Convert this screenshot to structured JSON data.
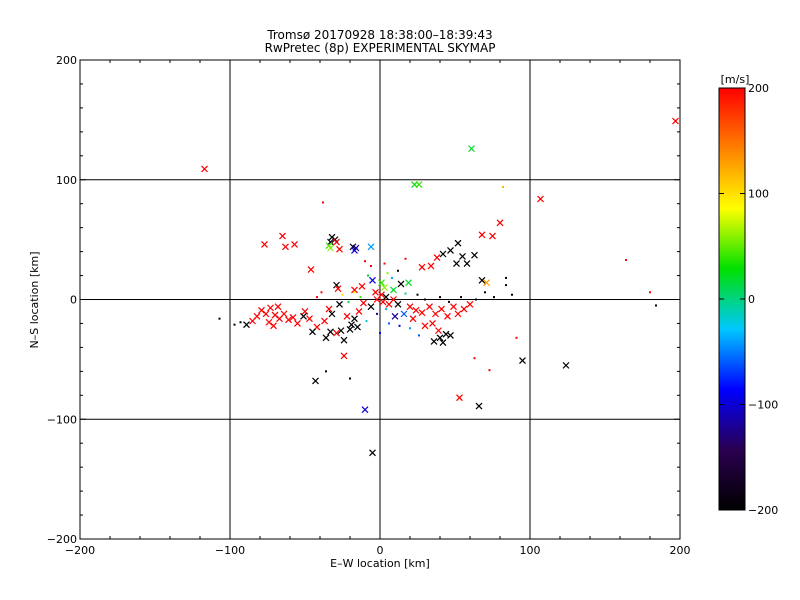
{
  "chart_data": {
    "type": "scatter",
    "title": "Tromsø 20170928 18:38:00–18:39:43",
    "subtitle": "RwPretec (8p) EXPERIMENTAL SKYMAP",
    "xlabel": "E–W location [km]",
    "ylabel": "N–S location [km]",
    "xlim": [
      -200,
      200
    ],
    "ylim": [
      -200,
      200
    ],
    "xticks": [
      -200,
      -100,
      0,
      100,
      200
    ],
    "yticks": [
      -200,
      -100,
      0,
      100,
      200
    ],
    "xtick_labels": [
      "−200",
      "−100",
      "0",
      "100",
      "200"
    ],
    "ytick_labels": [
      "−200",
      "−100",
      "0",
      "100",
      "200"
    ],
    "grid": true,
    "grid_lines": [
      -100,
      0,
      100
    ],
    "colorbar": {
      "label": "[m/s]",
      "range": [
        -200,
        200
      ],
      "ticks": [
        -200,
        -100,
        0,
        100,
        200
      ],
      "tick_labels": [
        "−200",
        "−100",
        "0",
        "100",
        "200"
      ],
      "stops": [
        "#000000",
        "#2a0050",
        "#0000ff",
        "#00c8ff",
        "#00e000",
        "#ffff00",
        "#ff8000",
        "#ff0000"
      ]
    },
    "markers": {
      "cross": "large velocity markers",
      "dot": "small velocity markers"
    },
    "points": [
      {
        "x": -117,
        "y": 109,
        "v": 200,
        "m": "x"
      },
      {
        "x": 197,
        "y": 149,
        "v": 200,
        "m": "x"
      },
      {
        "x": 61,
        "y": 126,
        "v": 20,
        "m": "x"
      },
      {
        "x": 23,
        "y": 96,
        "v": 30,
        "m": "x"
      },
      {
        "x": 26,
        "y": 96,
        "v": 40,
        "m": "x"
      },
      {
        "x": 107,
        "y": 84,
        "v": 200,
        "m": "x"
      },
      {
        "x": 82,
        "y": 94,
        "v": 120,
        "m": "d"
      },
      {
        "x": -38,
        "y": 81,
        "v": 200,
        "m": "d"
      },
      {
        "x": 80,
        "y": 64,
        "v": 200,
        "m": "x"
      },
      {
        "x": 68,
        "y": 54,
        "v": 200,
        "m": "x"
      },
      {
        "x": 75,
        "y": 53,
        "v": 200,
        "m": "x"
      },
      {
        "x": -65,
        "y": 53,
        "v": 200,
        "m": "x"
      },
      {
        "x": -32,
        "y": 52,
        "v": -200,
        "m": "x"
      },
      {
        "x": -30,
        "y": 50,
        "v": -200,
        "m": "x"
      },
      {
        "x": -33,
        "y": 48,
        "v": -180,
        "m": "x"
      },
      {
        "x": -29,
        "y": 48,
        "v": 200,
        "m": "x"
      },
      {
        "x": -77,
        "y": 46,
        "v": 200,
        "m": "x"
      },
      {
        "x": -57,
        "y": 46,
        "v": 200,
        "m": "x"
      },
      {
        "x": -63,
        "y": 44,
        "v": 200,
        "m": "x"
      },
      {
        "x": -34,
        "y": 45,
        "v": 40,
        "m": "x"
      },
      {
        "x": -33,
        "y": 43,
        "v": 60,
        "m": "x"
      },
      {
        "x": -27,
        "y": 42,
        "v": 200,
        "m": "x"
      },
      {
        "x": -18,
        "y": 44,
        "v": -180,
        "m": "x"
      },
      {
        "x": -16,
        "y": 43,
        "v": -120,
        "m": "x"
      },
      {
        "x": -17,
        "y": 41,
        "v": -100,
        "m": "x"
      },
      {
        "x": -6,
        "y": 44,
        "v": -40,
        "m": "x"
      },
      {
        "x": 52,
        "y": 47,
        "v": -200,
        "m": "x"
      },
      {
        "x": 47,
        "y": 41,
        "v": -200,
        "m": "x"
      },
      {
        "x": 42,
        "y": 38,
        "v": -200,
        "m": "x"
      },
      {
        "x": 38,
        "y": 35,
        "v": 200,
        "m": "x"
      },
      {
        "x": 55,
        "y": 36,
        "v": -200,
        "m": "x"
      },
      {
        "x": 63,
        "y": 37,
        "v": -200,
        "m": "x"
      },
      {
        "x": 51,
        "y": 30,
        "v": -200,
        "m": "x"
      },
      {
        "x": 58,
        "y": 30,
        "v": -200,
        "m": "x"
      },
      {
        "x": 34,
        "y": 28,
        "v": 200,
        "m": "x"
      },
      {
        "x": 28,
        "y": 27,
        "v": 200,
        "m": "x"
      },
      {
        "x": -46,
        "y": 25,
        "v": 200,
        "m": "x"
      },
      {
        "x": 68,
        "y": 16,
        "v": -200,
        "m": "x"
      },
      {
        "x": 71,
        "y": 14,
        "v": 130,
        "m": "x"
      },
      {
        "x": 84,
        "y": 18,
        "v": -200,
        "m": "d"
      },
      {
        "x": 84,
        "y": 12,
        "v": -200,
        "m": "d"
      },
      {
        "x": 88,
        "y": 4,
        "v": -200,
        "m": "d"
      },
      {
        "x": 164,
        "y": 33,
        "v": 200,
        "m": "d"
      },
      {
        "x": 180,
        "y": 6,
        "v": 200,
        "m": "d"
      },
      {
        "x": 184,
        "y": -5,
        "v": -200,
        "m": "d"
      },
      {
        "x": -29,
        "y": 12,
        "v": -200,
        "m": "x"
      },
      {
        "x": -28,
        "y": 9,
        "v": 200,
        "m": "x"
      },
      {
        "x": -17,
        "y": 8,
        "v": 200,
        "m": "x"
      },
      {
        "x": -12,
        "y": 11,
        "v": 200,
        "m": "x"
      },
      {
        "x": -5,
        "y": 16,
        "v": -100,
        "m": "x"
      },
      {
        "x": 1,
        "y": 14,
        "v": 40,
        "m": "x"
      },
      {
        "x": 3,
        "y": 10,
        "v": 60,
        "m": "x"
      },
      {
        "x": 9,
        "y": 8,
        "v": 20,
        "m": "x"
      },
      {
        "x": 14,
        "y": 13,
        "v": -200,
        "m": "x"
      },
      {
        "x": 19,
        "y": 14,
        "v": 20,
        "m": "x"
      },
      {
        "x": -3,
        "y": 6,
        "v": 200,
        "m": "x"
      },
      {
        "x": 1,
        "y": 4,
        "v": 200,
        "m": "x"
      },
      {
        "x": 4,
        "y": 2,
        "v": -200,
        "m": "x"
      },
      {
        "x": -2,
        "y": 0,
        "v": 200,
        "m": "x"
      },
      {
        "x": 2,
        "y": -2,
        "v": 200,
        "m": "x"
      },
      {
        "x": 6,
        "y": -4,
        "v": 200,
        "m": "x"
      },
      {
        "x": 9,
        "y": 0,
        "v": 200,
        "m": "x"
      },
      {
        "x": 12,
        "y": -4,
        "v": -200,
        "m": "x"
      },
      {
        "x": -6,
        "y": -6,
        "v": -200,
        "m": "x"
      },
      {
        "x": -11,
        "y": -3,
        "v": 200,
        "m": "x"
      },
      {
        "x": -14,
        "y": -10,
        "v": 200,
        "m": "x"
      },
      {
        "x": -17,
        "y": -16,
        "v": -200,
        "m": "x"
      },
      {
        "x": -19,
        "y": -21,
        "v": -200,
        "m": "x"
      },
      {
        "x": -20,
        "y": -25,
        "v": -200,
        "m": "x"
      },
      {
        "x": -15,
        "y": -23,
        "v": -200,
        "m": "x"
      },
      {
        "x": -22,
        "y": -14,
        "v": 200,
        "m": "x"
      },
      {
        "x": -26,
        "y": -26,
        "v": -200,
        "m": "x"
      },
      {
        "x": -33,
        "y": -27,
        "v": -200,
        "m": "x"
      },
      {
        "x": -36,
        "y": -32,
        "v": -200,
        "m": "x"
      },
      {
        "x": -24,
        "y": -34,
        "v": -200,
        "m": "x"
      },
      {
        "x": -42,
        "y": -23,
        "v": 200,
        "m": "x"
      },
      {
        "x": -47,
        "y": -16,
        "v": 200,
        "m": "x"
      },
      {
        "x": -50,
        "y": -10,
        "v": 200,
        "m": "x"
      },
      {
        "x": -51,
        "y": -14,
        "v": -200,
        "m": "x"
      },
      {
        "x": -34,
        "y": -8,
        "v": 200,
        "m": "x"
      },
      {
        "x": -32,
        "y": -12,
        "v": -200,
        "m": "x"
      },
      {
        "x": -27,
        "y": -4,
        "v": -200,
        "m": "x"
      },
      {
        "x": -37,
        "y": -18,
        "v": 200,
        "m": "x"
      },
      {
        "x": -45,
        "y": -27,
        "v": -200,
        "m": "x"
      },
      {
        "x": -24,
        "y": -47,
        "v": 200,
        "m": "x"
      },
      {
        "x": -29,
        "y": -28,
        "v": 200,
        "m": "x"
      },
      {
        "x": 20,
        "y": -6,
        "v": 200,
        "m": "x"
      },
      {
        "x": 24,
        "y": -9,
        "v": 200,
        "m": "x"
      },
      {
        "x": 28,
        "y": -11,
        "v": 200,
        "m": "x"
      },
      {
        "x": 33,
        "y": -6,
        "v": 200,
        "m": "x"
      },
      {
        "x": 37,
        "y": -12,
        "v": 200,
        "m": "x"
      },
      {
        "x": 41,
        "y": -8,
        "v": 200,
        "m": "x"
      },
      {
        "x": 45,
        "y": -14,
        "v": 200,
        "m": "x"
      },
      {
        "x": 49,
        "y": -6,
        "v": 200,
        "m": "x"
      },
      {
        "x": 52,
        "y": -12,
        "v": 200,
        "m": "x"
      },
      {
        "x": 56,
        "y": -8,
        "v": 200,
        "m": "x"
      },
      {
        "x": 60,
        "y": -4,
        "v": 200,
        "m": "x"
      },
      {
        "x": 35,
        "y": -20,
        "v": 200,
        "m": "x"
      },
      {
        "x": 39,
        "y": -26,
        "v": 200,
        "m": "x"
      },
      {
        "x": 30,
        "y": -22,
        "v": 200,
        "m": "x"
      },
      {
        "x": 44,
        "y": -29,
        "v": -200,
        "m": "x"
      },
      {
        "x": 40,
        "y": -32,
        "v": -200,
        "m": "x"
      },
      {
        "x": 36,
        "y": -35,
        "v": -200,
        "m": "x"
      },
      {
        "x": 42,
        "y": -36,
        "v": -200,
        "m": "x"
      },
      {
        "x": 47,
        "y": -30,
        "v": -200,
        "m": "x"
      },
      {
        "x": 22,
        "y": -16,
        "v": 200,
        "m": "x"
      },
      {
        "x": 16,
        "y": -12,
        "v": -60,
        "m": "x"
      },
      {
        "x": 10,
        "y": -14,
        "v": -120,
        "m": "x"
      },
      {
        "x": -79,
        "y": -9,
        "v": 200,
        "m": "x"
      },
      {
        "x": -76,
        "y": -12,
        "v": 200,
        "m": "x"
      },
      {
        "x": -73,
        "y": -7,
        "v": 200,
        "m": "x"
      },
      {
        "x": -70,
        "y": -13,
        "v": 200,
        "m": "x"
      },
      {
        "x": -67,
        "y": -16,
        "v": 200,
        "m": "x"
      },
      {
        "x": -64,
        "y": -12,
        "v": 200,
        "m": "x"
      },
      {
        "x": -61,
        "y": -17,
        "v": 200,
        "m": "x"
      },
      {
        "x": -58,
        "y": -15,
        "v": 200,
        "m": "x"
      },
      {
        "x": -74,
        "y": -19,
        "v": 200,
        "m": "x"
      },
      {
        "x": -71,
        "y": -22,
        "v": 200,
        "m": "x"
      },
      {
        "x": -82,
        "y": -14,
        "v": 200,
        "m": "x"
      },
      {
        "x": -85,
        "y": -18,
        "v": 200,
        "m": "x"
      },
      {
        "x": -89,
        "y": -21,
        "v": -200,
        "m": "x"
      },
      {
        "x": -68,
        "y": -6,
        "v": 200,
        "m": "x"
      },
      {
        "x": -55,
        "y": -20,
        "v": 200,
        "m": "x"
      },
      {
        "x": -43,
        "y": -68,
        "v": -200,
        "m": "x"
      },
      {
        "x": 66,
        "y": -89,
        "v": -200,
        "m": "x"
      },
      {
        "x": 53,
        "y": -82,
        "v": 200,
        "m": "x"
      },
      {
        "x": 95,
        "y": -51,
        "v": -200,
        "m": "x"
      },
      {
        "x": 124,
        "y": -55,
        "v": -200,
        "m": "x"
      },
      {
        "x": -10,
        "y": -92,
        "v": -100,
        "m": "x"
      },
      {
        "x": -5,
        "y": -128,
        "v": -200,
        "m": "x"
      },
      {
        "x": 63,
        "y": -49,
        "v": 200,
        "m": "d"
      },
      {
        "x": 73,
        "y": -59,
        "v": 200,
        "m": "d"
      },
      {
        "x": 91,
        "y": -32,
        "v": 200,
        "m": "d"
      },
      {
        "x": -36,
        "y": -60,
        "v": -200,
        "m": "d"
      },
      {
        "x": -20,
        "y": -66,
        "v": -200,
        "m": "d"
      },
      {
        "x": -107,
        "y": -16,
        "v": -200,
        "m": "d"
      },
      {
        "x": -97,
        "y": -21,
        "v": -200,
        "m": "d"
      },
      {
        "x": -93,
        "y": -19,
        "v": -200,
        "m": "d"
      },
      {
        "x": 5,
        "y": 22,
        "v": 60,
        "m": "d"
      },
      {
        "x": 8,
        "y": 18,
        "v": -40,
        "m": "d"
      },
      {
        "x": -8,
        "y": 20,
        "v": 20,
        "m": "d"
      },
      {
        "x": 12,
        "y": 24,
        "v": -200,
        "m": "d"
      },
      {
        "x": 17,
        "y": 5,
        "v": 0,
        "m": "d"
      },
      {
        "x": -9,
        "y": -18,
        "v": -20,
        "m": "d"
      },
      {
        "x": 6,
        "y": -20,
        "v": -60,
        "m": "d"
      },
      {
        "x": 13,
        "y": -22,
        "v": -100,
        "m": "d"
      },
      {
        "x": 20,
        "y": -24,
        "v": -40,
        "m": "d"
      },
      {
        "x": 26,
        "y": -30,
        "v": -60,
        "m": "d"
      },
      {
        "x": 0,
        "y": -28,
        "v": -80,
        "m": "d"
      },
      {
        "x": 25,
        "y": 4,
        "v": -200,
        "m": "d"
      },
      {
        "x": 30,
        "y": 0,
        "v": -200,
        "m": "d"
      },
      {
        "x": 40,
        "y": 2,
        "v": -200,
        "m": "d"
      },
      {
        "x": 46,
        "y": -2,
        "v": -200,
        "m": "d"
      },
      {
        "x": 54,
        "y": 2,
        "v": -200,
        "m": "d"
      },
      {
        "x": 64,
        "y": 0,
        "v": -200,
        "m": "d"
      },
      {
        "x": 70,
        "y": 6,
        "v": -200,
        "m": "d"
      },
      {
        "x": 76,
        "y": 2,
        "v": -200,
        "m": "d"
      },
      {
        "x": -13,
        "y": 2,
        "v": 40,
        "m": "d"
      },
      {
        "x": -17,
        "y": 6,
        "v": 80,
        "m": "d"
      },
      {
        "x": -21,
        "y": -2,
        "v": 20,
        "m": "d"
      },
      {
        "x": -25,
        "y": 4,
        "v": 100,
        "m": "d"
      },
      {
        "x": -39,
        "y": 6,
        "v": 200,
        "m": "d"
      },
      {
        "x": -42,
        "y": 2,
        "v": 200,
        "m": "d"
      },
      {
        "x": 3,
        "y": 30,
        "v": 200,
        "m": "d"
      },
      {
        "x": -6,
        "y": 28,
        "v": 200,
        "m": "d"
      },
      {
        "x": -10,
        "y": 32,
        "v": 200,
        "m": "d"
      },
      {
        "x": 17,
        "y": 34,
        "v": 200,
        "m": "d"
      },
      {
        "x": -2,
        "y": -12,
        "v": -120,
        "m": "d"
      },
      {
        "x": 4,
        "y": -8,
        "v": -20,
        "m": "d"
      }
    ]
  }
}
